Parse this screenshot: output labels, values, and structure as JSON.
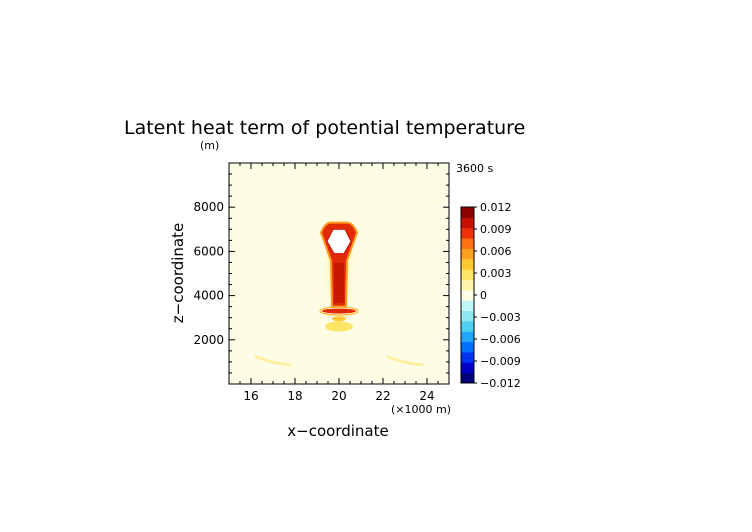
{
  "chart_data": {
    "type": "heatmap",
    "title": "Latent heat term of potential temperature",
    "time_label": "3600 s",
    "xlabel": "x−coordinate",
    "x_unit": "(×1000 m)",
    "ylabel": "z−coordinate",
    "y_unit": "(m)",
    "xlim": [
      15,
      25
    ],
    "ylim": [
      0,
      10000
    ],
    "xticks": [
      16,
      18,
      20,
      22,
      24
    ],
    "yticks": [
      2000,
      4000,
      6000,
      8000
    ],
    "colorbar": {
      "min": -0.012,
      "max": 0.012,
      "labels": [
        "0.012",
        "0.009",
        "0.006",
        "0.003",
        "0",
        "−0.003",
        "−0.006",
        "−0.009",
        "−0.012"
      ],
      "colors": [
        "#00007a",
        "#0000c8",
        "#0030f0",
        "#0070ff",
        "#20a8ff",
        "#50d0f0",
        "#90e8f0",
        "#c0f6f6",
        "#ffffe6",
        "#fff4a8",
        "#ffe566",
        "#ffc830",
        "#ffa01e",
        "#ff7010",
        "#f03008",
        "#c81000",
        "#8c0000"
      ],
      "over_color": "#ffffff",
      "background_color": "#fdfde6"
    },
    "features": [
      {
        "name": "core-column",
        "x_center": 20.0,
        "z_bottom": 3500,
        "z_top": 7300,
        "max_value": 0.012
      },
      {
        "name": "saturated-core",
        "x_center": 20.0,
        "z_bottom": 5900,
        "z_top": 7000,
        "value": "above 0.012"
      },
      {
        "name": "band-upper",
        "x_center": 20.0,
        "z": 3300,
        "value": 0.011
      },
      {
        "name": "band-middle",
        "x_center": 20.0,
        "z": 2950,
        "value": 0.006
      },
      {
        "name": "band-lower",
        "x_center": 20.0,
        "z": 2600,
        "value": 0.003
      },
      {
        "name": "left-wisp",
        "x_center": 17.0,
        "z": 1050,
        "value": 0.002
      },
      {
        "name": "right-wisp",
        "x_center": 23.0,
        "z": 1050,
        "value": 0.002
      }
    ]
  }
}
